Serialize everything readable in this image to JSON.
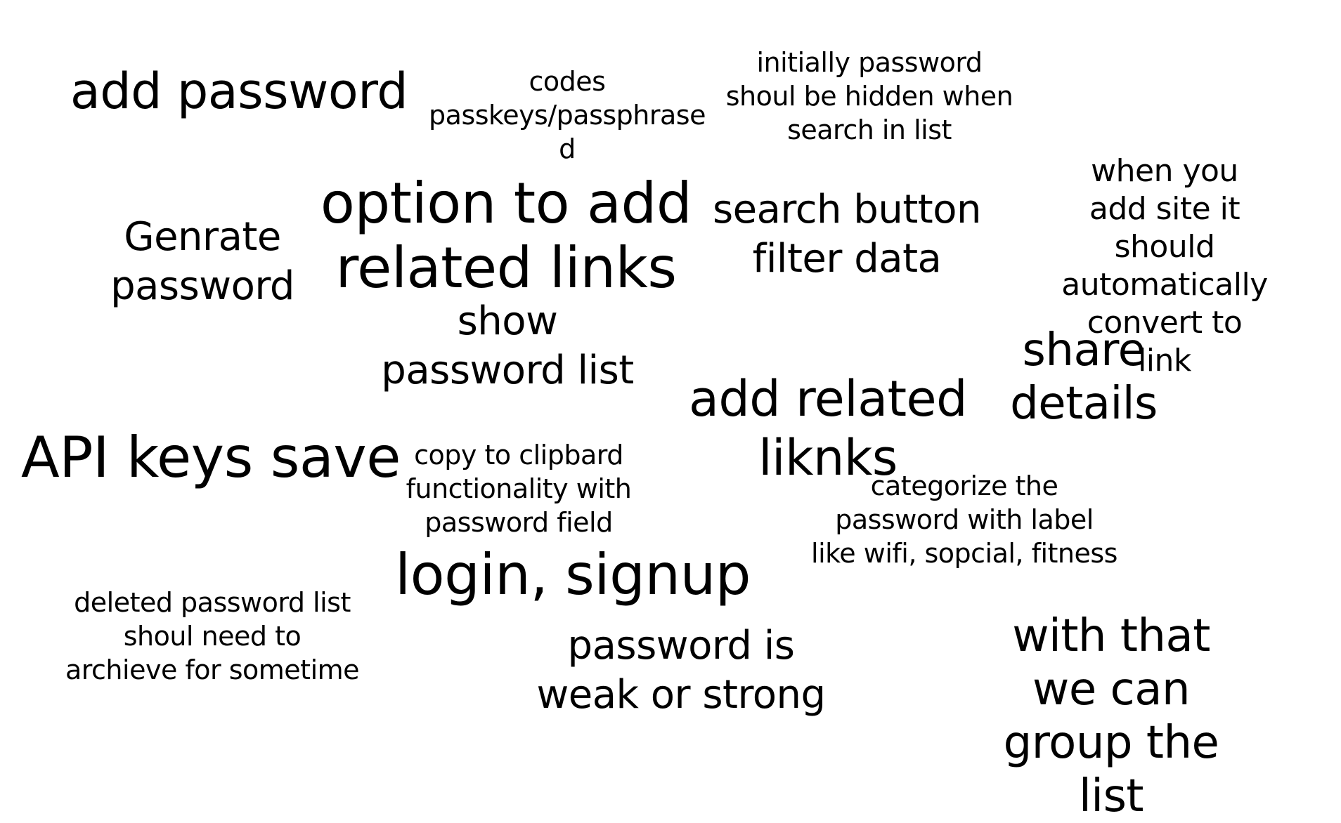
{
  "notes": [
    {
      "id": "add-password",
      "text": "add password"
    },
    {
      "id": "codes-passkeys",
      "text": "codes\npasskeys/passphrase\nd"
    },
    {
      "id": "initially-hidden",
      "text": "initially password\nshoul be hidden when\nsearch in list"
    },
    {
      "id": "genrate-password",
      "text": "Genrate\npassword"
    },
    {
      "id": "option-related-links",
      "text": "option to add\nrelated links"
    },
    {
      "id": "search-filter",
      "text": "search button\nfilter data"
    },
    {
      "id": "auto-link",
      "text": "when you add site it\nshould automatically\nconvert to link"
    },
    {
      "id": "show-password-list",
      "text": "show\npassword list"
    },
    {
      "id": "share-details",
      "text": "share details"
    },
    {
      "id": "add-related-liknks",
      "text": "add related\nliknks"
    },
    {
      "id": "api-keys-save",
      "text": "API keys save"
    },
    {
      "id": "copy-clipboard",
      "text": "copy to clipbard\nfunctionality with\npassword field"
    },
    {
      "id": "categorize",
      "text": "categorize the\npassword with label\nlike wifi, sopcial, fitness"
    },
    {
      "id": "login-signup",
      "text": "login, signup"
    },
    {
      "id": "deleted-list",
      "text": "deleted password list\nshoul need to\narchieve for sometime"
    },
    {
      "id": "weak-strong",
      "text": "password is\nweak or strong"
    },
    {
      "id": "group-list",
      "text": "with that we can\ngroup the list"
    }
  ]
}
